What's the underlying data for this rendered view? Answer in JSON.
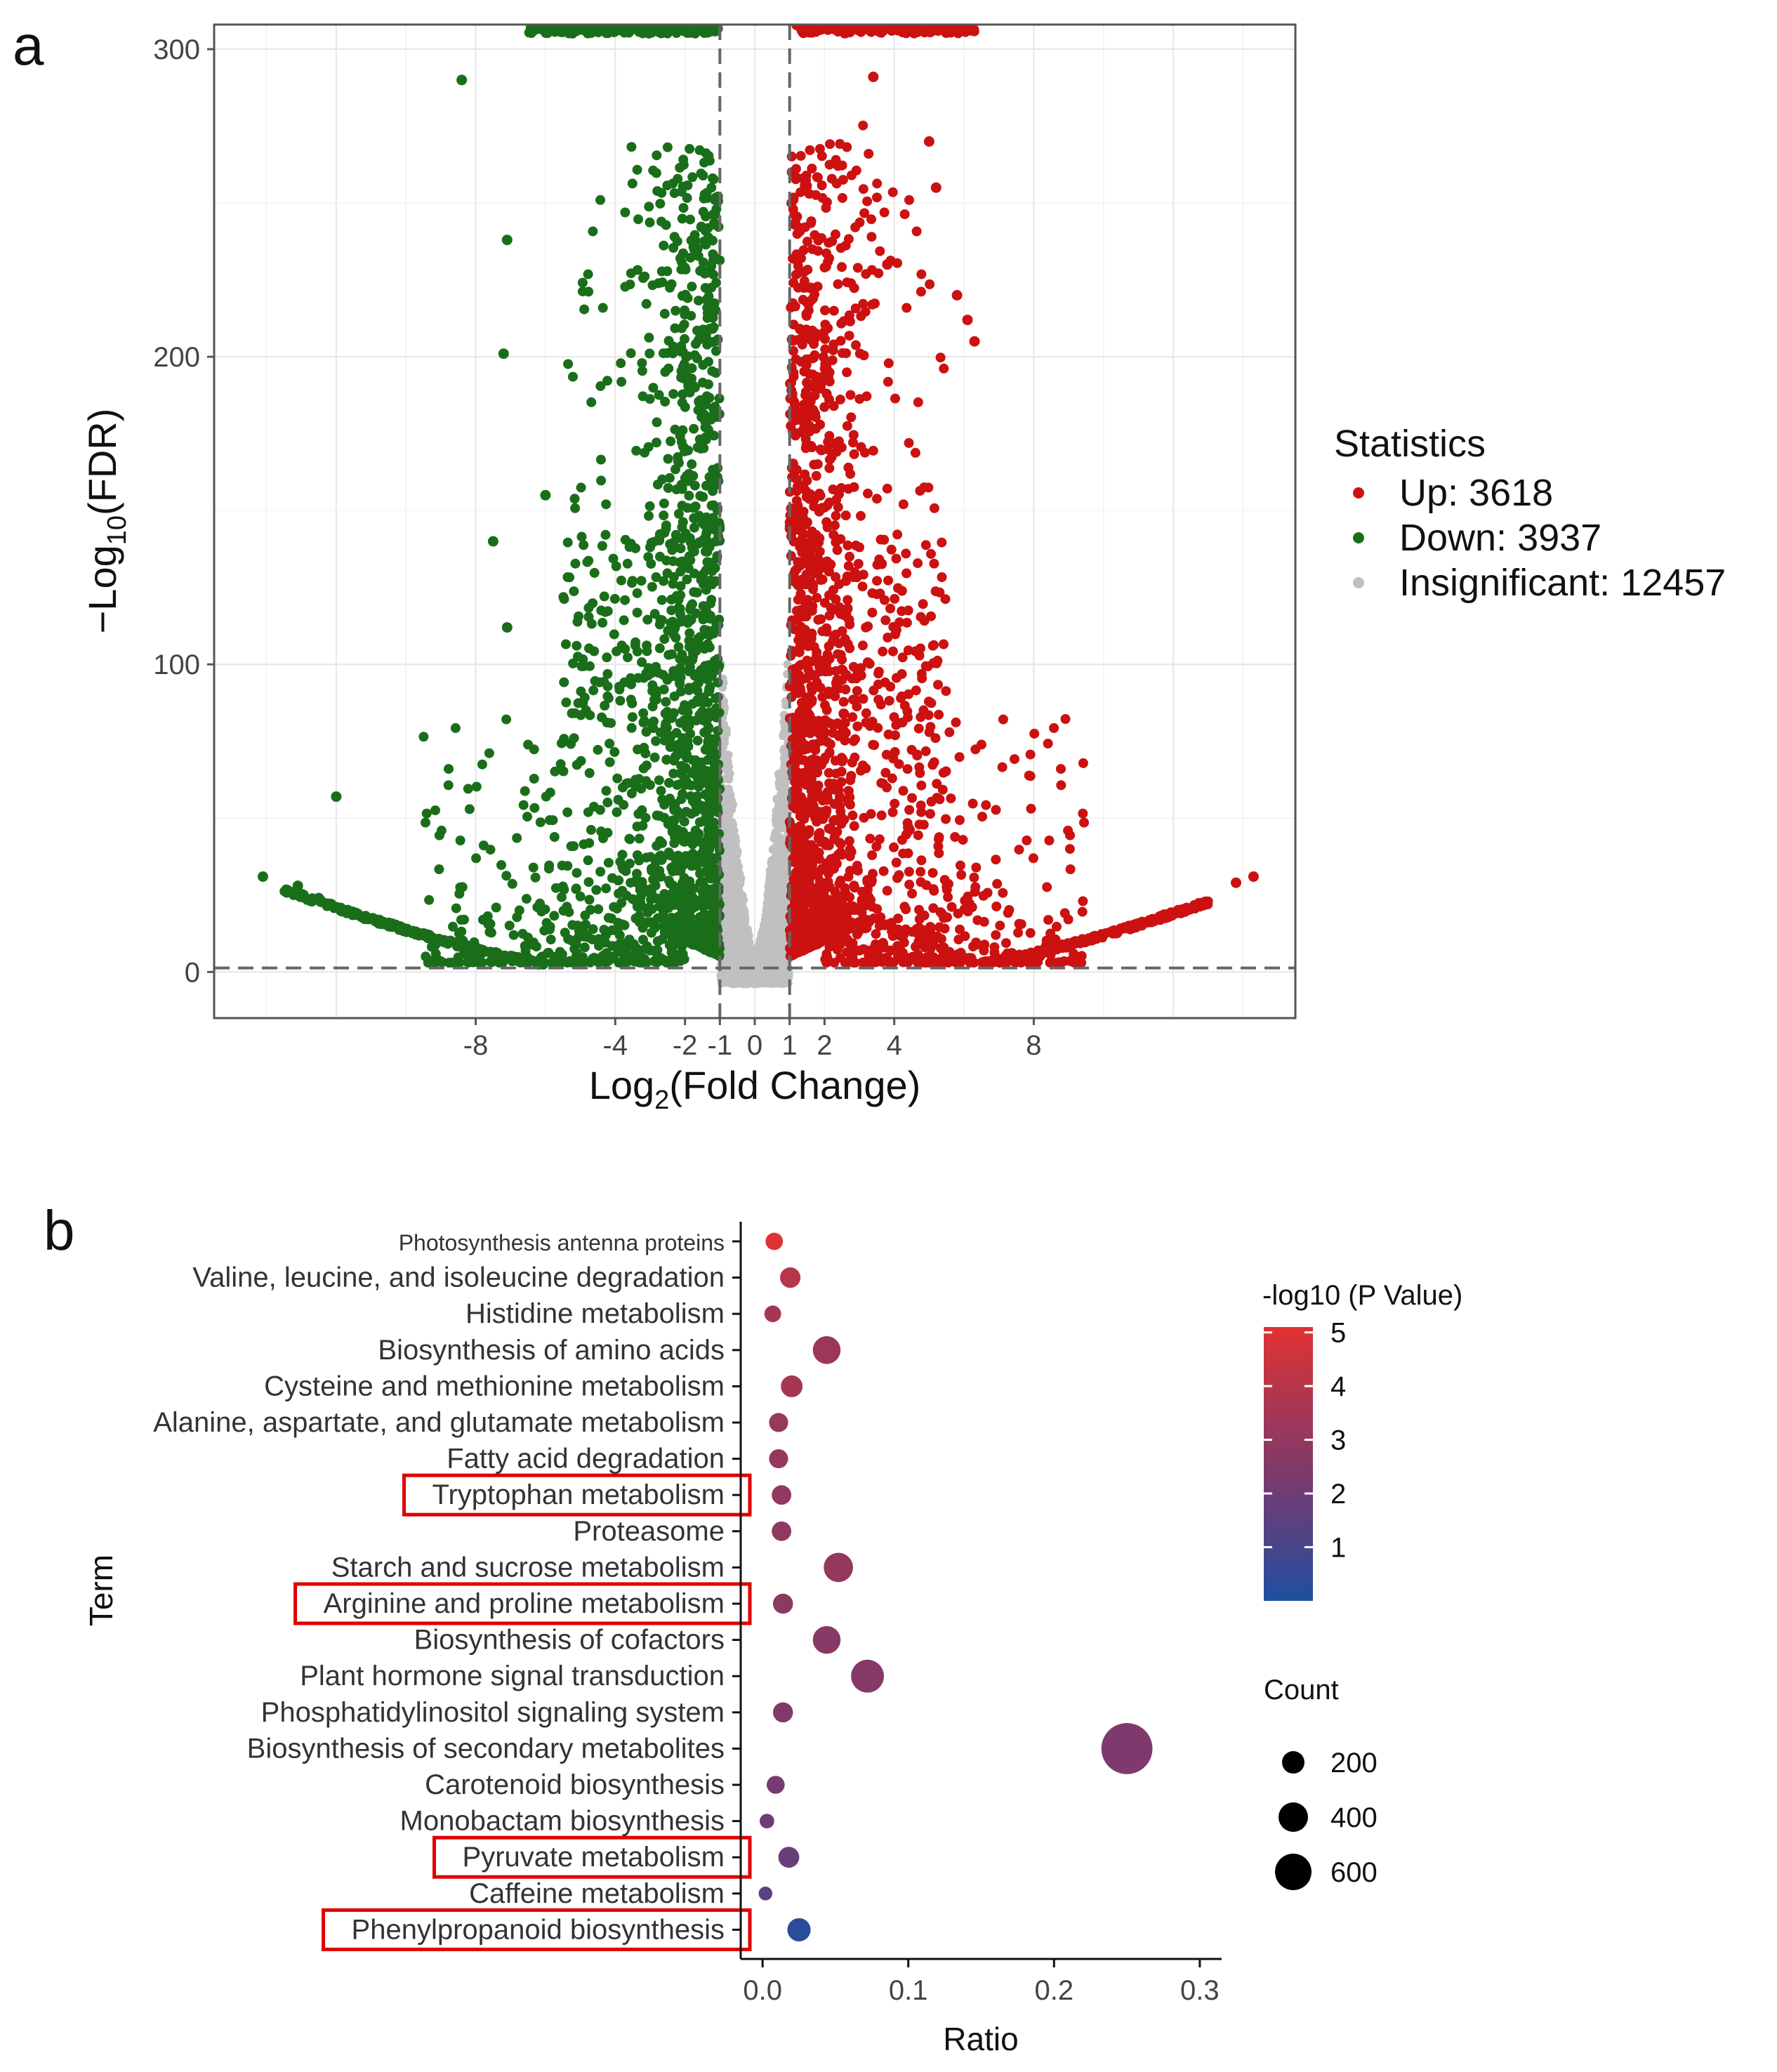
{
  "panels": {
    "a_label": "a",
    "b_label": "b"
  },
  "colors": {
    "up": "#cc1111",
    "down": "#1a6e1a",
    "insignificant": "#c0c0c0",
    "grad_high": "#e03232",
    "grad_mid": "#7a3a6e",
    "grad_low": "#1f4fa0",
    "highlight_box": "#e00000"
  },
  "chart_data": [
    {
      "type": "scatter",
      "panel": "a",
      "xlabel_main": "Log",
      "xlabel_sub": "2",
      "xlabel_rest": "(Fold Change)",
      "ylabel_main": "−Log",
      "ylabel_sub": "10",
      "ylabel_rest": "(FDR)",
      "x_ticks": [
        -8,
        -4,
        -2,
        -1,
        0,
        1,
        2,
        4,
        8
      ],
      "y_ticks": [
        0,
        100,
        200,
        300
      ],
      "xlim": [
        -15.5,
        15.5
      ],
      "ylim": [
        -15,
        308
      ],
      "thresholds": {
        "x": [
          -1,
          1
        ],
        "y": 1.3
      },
      "grid": true,
      "legend": {
        "position": "right",
        "title": "Statistics",
        "entries": [
          {
            "label": "Up: 3618",
            "color": "#cc1111"
          },
          {
            "label": "Down: 3937",
            "color": "#1a6e1a"
          },
          {
            "label": "Insignificant: 12457",
            "color": "#c0c0c0"
          }
        ]
      },
      "series_counts": {
        "up": 3618,
        "down": 3937,
        "insignificant": 12457
      },
      "selected_points": {
        "up": [
          [
            4.4,
            47
          ],
          [
            13.8,
            29
          ],
          [
            14.3,
            31
          ],
          [
            5.0,
            270
          ],
          [
            5.2,
            255
          ],
          [
            5.8,
            220
          ],
          [
            6.1,
            212
          ],
          [
            6.3,
            205
          ],
          [
            3.8,
            230
          ],
          [
            3.4,
            291
          ]
        ],
        "down": [
          [
            -14.1,
            31
          ],
          [
            -12.0,
            57
          ],
          [
            -8.4,
            290
          ],
          [
            -7.1,
            238
          ],
          [
            -7.2,
            201
          ],
          [
            -6.0,
            155
          ],
          [
            -7.5,
            140
          ],
          [
            -7.1,
            112
          ],
          [
            -13.1,
            28
          ],
          [
            -12.5,
            24
          ]
        ]
      }
    },
    {
      "type": "scatter",
      "panel": "b",
      "xlabel": "Ratio",
      "ylabel": "Term",
      "x_ticks": [
        "0.0",
        "0.1",
        "0.2",
        "0.3"
      ],
      "xlim": [
        -0.015,
        0.315
      ],
      "color_legend": {
        "title": "-log10 (P Value)",
        "ticks": [
          "5",
          "4",
          "3",
          "2",
          "1"
        ],
        "min": 0,
        "max": 5.1
      },
      "size_legend": {
        "title": "Count",
        "entries": [
          {
            "label": "200",
            "value": 200
          },
          {
            "label": "400",
            "value": 400
          },
          {
            "label": "600",
            "value": 600
          }
        ]
      },
      "terms": [
        {
          "name": "Photosynthesis antenna proteins",
          "ratio": 0.008,
          "count": 30,
          "logp": 5.0,
          "highlight": false
        },
        {
          "name": "Valine, leucine, and isoleucine degradation",
          "ratio": 0.019,
          "count": 60,
          "logp": 4.0,
          "highlight": false
        },
        {
          "name": "Histidine metabolism",
          "ratio": 0.007,
          "count": 25,
          "logp": 3.5,
          "highlight": false
        },
        {
          "name": "Biosynthesis of amino acids",
          "ratio": 0.044,
          "count": 170,
          "logp": 3.2,
          "highlight": false
        },
        {
          "name": "Cysteine and methionine metabolism",
          "ratio": 0.02,
          "count": 75,
          "logp": 3.5,
          "highlight": false
        },
        {
          "name": "Alanine, aspartate, and glutamate metabolism",
          "ratio": 0.011,
          "count": 45,
          "logp": 3.1,
          "highlight": false
        },
        {
          "name": "Fatty acid degradation",
          "ratio": 0.011,
          "count": 45,
          "logp": 3.0,
          "highlight": false
        },
        {
          "name": "Tryptophan metabolism",
          "ratio": 0.013,
          "count": 50,
          "logp": 3.0,
          "highlight": true
        },
        {
          "name": "Proteasome",
          "ratio": 0.013,
          "count": 50,
          "logp": 2.9,
          "highlight": false
        },
        {
          "name": "Starch and sucrose metabolism",
          "ratio": 0.052,
          "count": 200,
          "logp": 3.0,
          "highlight": false
        },
        {
          "name": "Arginine and proline metabolism",
          "ratio": 0.014,
          "count": 55,
          "logp": 2.8,
          "highlight": true
        },
        {
          "name": "Biosynthesis of cofactors",
          "ratio": 0.044,
          "count": 170,
          "logp": 2.7,
          "highlight": false
        },
        {
          "name": "Plant hormone signal transduction",
          "ratio": 0.072,
          "count": 280,
          "logp": 2.6,
          "highlight": false
        },
        {
          "name": "Phosphatidylinositol signaling system",
          "ratio": 0.014,
          "count": 55,
          "logp": 2.5,
          "highlight": false
        },
        {
          "name": "Biosynthesis of secondary metabolites",
          "ratio": 0.25,
          "count": 900,
          "logp": 2.4,
          "highlight": false
        },
        {
          "name": "Carotenoid biosynthesis",
          "ratio": 0.009,
          "count": 35,
          "logp": 2.2,
          "highlight": false
        },
        {
          "name": "Monobactam biosynthesis",
          "ratio": 0.003,
          "count": 12,
          "logp": 2.0,
          "highlight": false
        },
        {
          "name": "Pyruvate metabolism",
          "ratio": 0.018,
          "count": 65,
          "logp": 1.8,
          "highlight": true
        },
        {
          "name": "Caffeine metabolism",
          "ratio": 0.002,
          "count": 8,
          "logp": 1.5,
          "highlight": false
        },
        {
          "name": "Phenylpropanoid biosynthesis",
          "ratio": 0.025,
          "count": 95,
          "logp": 0.3,
          "highlight": true
        }
      ]
    }
  ]
}
